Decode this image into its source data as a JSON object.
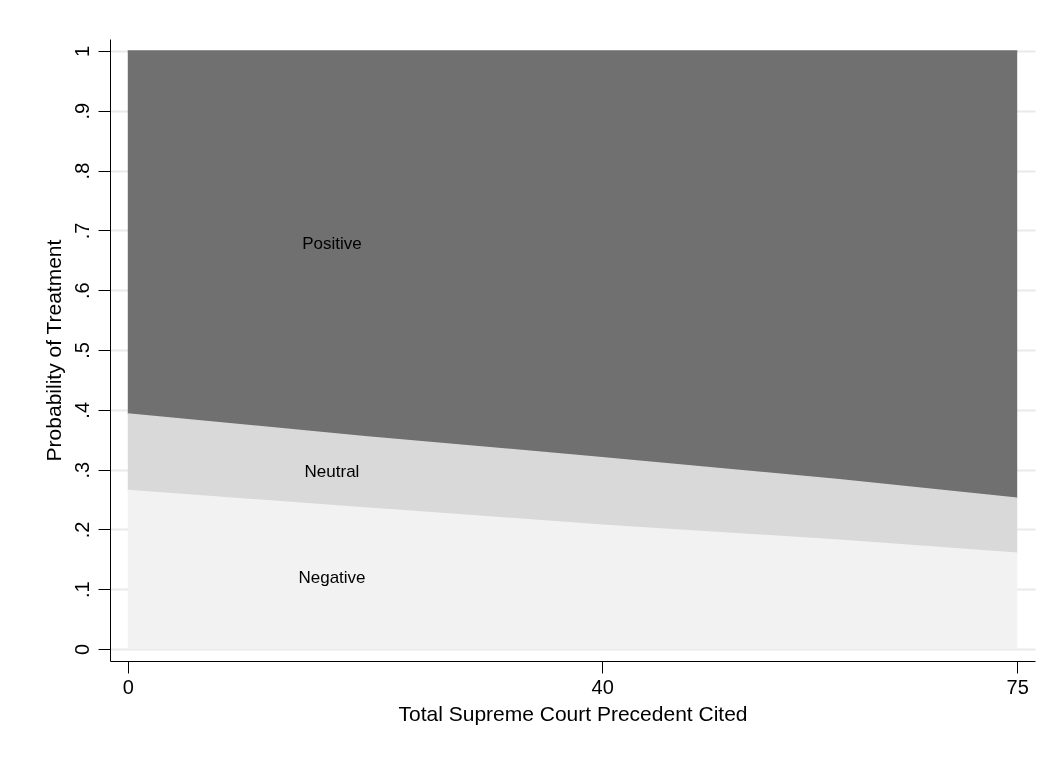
{
  "chart_data": {
    "type": "area",
    "stacked": true,
    "xlabel": "Total Supreme Court Precedent Cited",
    "ylabel": "Probability of Treatment",
    "x": [
      0,
      20,
      40,
      60,
      75
    ],
    "series": [
      {
        "name": "Negative",
        "color": "#f2f2f2",
        "values": [
          0.265,
          0.236,
          0.207,
          0.182,
          0.16
        ]
      },
      {
        "name": "Neutral",
        "color": "#d9d9d9",
        "values": [
          0.128,
          0.119,
          0.113,
          0.101,
          0.092
        ]
      },
      {
        "name": "Positive",
        "color": "#707070",
        "values": [
          0.607,
          0.645,
          0.68,
          0.717,
          0.748
        ]
      }
    ],
    "xlim": [
      -1.5,
      76.5
    ],
    "xticks": [
      0,
      40,
      75
    ],
    "ylim": [
      -0.02,
      1.02
    ],
    "yticks": [
      0,
      {
        "value": 0.1,
        "label": ".1"
      },
      {
        "value": 0.2,
        "label": ".2"
      },
      {
        "value": 0.3,
        "label": ".3"
      },
      {
        "value": 0.4,
        "label": ".4"
      },
      {
        "value": 0.5,
        "label": ".5"
      },
      {
        "value": 0.6,
        "label": ".6"
      },
      {
        "value": 0.7,
        "label": ".7"
      },
      {
        "value": 0.8,
        "label": ".8"
      },
      {
        "value": 0.9,
        "label": ".9"
      },
      1
    ],
    "grid": "y",
    "legend": false
  }
}
